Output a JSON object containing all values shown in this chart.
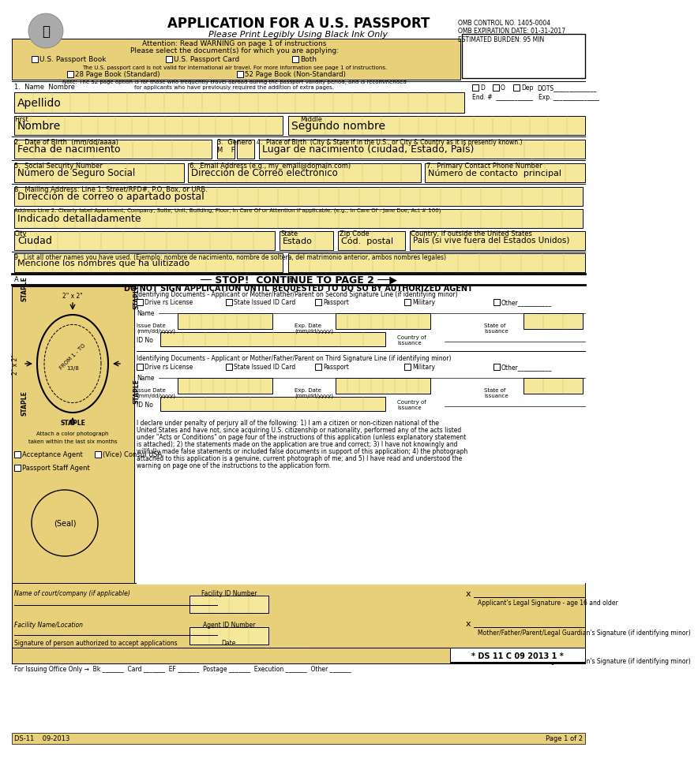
{
  "title": "APPLICATION FOR A U.S. PASSPORT",
  "subtitle": "Please Print Legibly Using Black Ink Only",
  "form_bg": "#e8d07a",
  "field_bg": "#f5e89a",
  "white": "#ffffff",
  "black": "#000000",
  "omb_text": "OMB CONTROL NO. 1405-0004\nOMB EXPIRATION DATE: 01-31-2017\nESTIMATED BURDEN: 95 MIN",
  "id_doc_text": "Identifying Documents - Applicant or Mother/Father/Parent on Second Signature Line (if identifying minor)",
  "id_doc_text2": "Identifying Documents - Applicant or Mother/Father/Parent on Third Signature Line (if identifying minor)",
  "id_checkboxes": [
    "Drive rs License",
    "State Issued ID Card",
    "Passport",
    "Military",
    "Other___________"
  ],
  "bottom_text": "I declare under penalty of perjury all of the following: 1) I am a citizen or non-citizen national of the United States and have not, since acquiring U.S. citizenship or nationality, performed any of the acts listed under \"Acts or Conditions\" on page four of the instructions of this application (unless explanatory statement is attached); 2) the statements made on the application are true and correct; 3) I have not knowingly and willfully made false statements or included false documents in support of this application; 4) the photograph attached to this application is a genuine, current photograph of me; and 5) I have read and understood the warning on page one of the instructions to the application form.",
  "sig_labels": [
    "Applicant's Legal Signature - age 16 and older",
    "Mother/Father/Parent/Legal Guardian's Signature (if identifying minor)",
    "Mother/Father/Parent/Legal Guardian's Signature (if identifying minor)"
  ],
  "footer_left": "DS-11    09-2013",
  "footer_right": "Page 1 of 2",
  "footer_barcode": "* DS 11 C 09 2013 1 *",
  "issuing_text": "For Issuing Office Only →  Bk _______  Card _______  EF _______  Postage _______  Execution _______  Other _______"
}
